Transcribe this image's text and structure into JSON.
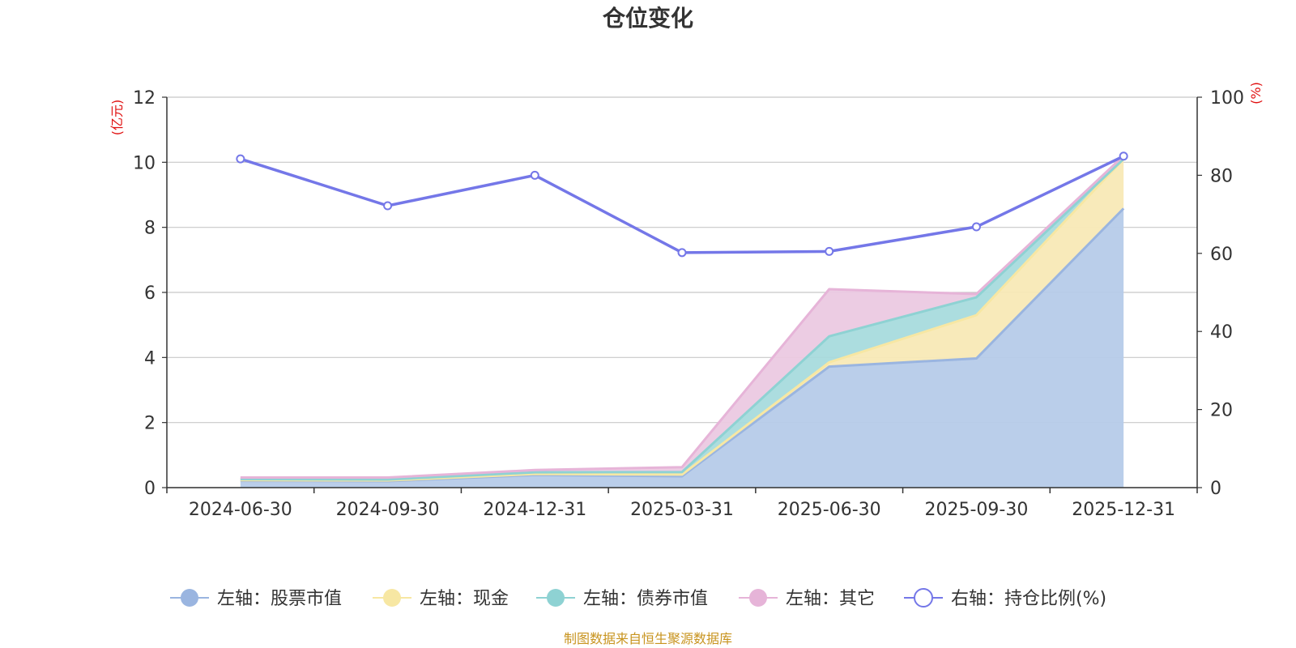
{
  "chart_data": {
    "type": "area",
    "title": "仓位变化",
    "categories": [
      "2024-06-30",
      "2024-09-30",
      "2024-12-31",
      "2025-03-31",
      "2025-06-30",
      "2025-09-30",
      "2025-12-31"
    ],
    "left_axis": {
      "unit": "(亿元)",
      "min": 0,
      "max": 12,
      "ticks": [
        "0",
        "2",
        "4",
        "6",
        "8",
        "10",
        "12"
      ]
    },
    "right_axis": {
      "unit": "(%)",
      "min": 0,
      "max": 100,
      "ticks": [
        "0",
        "20",
        "40",
        "60",
        "80",
        "100"
      ]
    },
    "stacked_series": [
      {
        "name": "左轴：股票市值",
        "color": "#9ab5e0",
        "fill": "#b6cbe9",
        "values": [
          0.21,
          0.2,
          0.39,
          0.35,
          3.72,
          3.97,
          8.58
        ]
      },
      {
        "name": "左轴：现金",
        "color": "#f7e7a3",
        "fill": "#f8e9b6",
        "values": [
          0.02,
          0.02,
          0.03,
          0.05,
          0.13,
          1.33,
          1.52
        ]
      },
      {
        "name": "左轴：债券市值",
        "color": "#8ed2d3",
        "fill": "#a8dbdd",
        "values": [
          0.03,
          0.03,
          0.05,
          0.08,
          0.8,
          0.55,
          0.0
        ]
      },
      {
        "name": "左轴：其它",
        "color": "#e6b4d8",
        "fill": "#ebc9e2",
        "values": [
          0.05,
          0.06,
          0.07,
          0.15,
          1.45,
          0.1,
          0.1
        ]
      }
    ],
    "line_series": {
      "name": "右轴：持仓比例(%)",
      "color": "#7477e8",
      "values": [
        84.2,
        72.2,
        80.0,
        60.2,
        60.5,
        66.8,
        84.9
      ]
    },
    "grid": true,
    "legend_position": "bottom"
  },
  "source_note": "制图数据来自恒生聚源数据库"
}
